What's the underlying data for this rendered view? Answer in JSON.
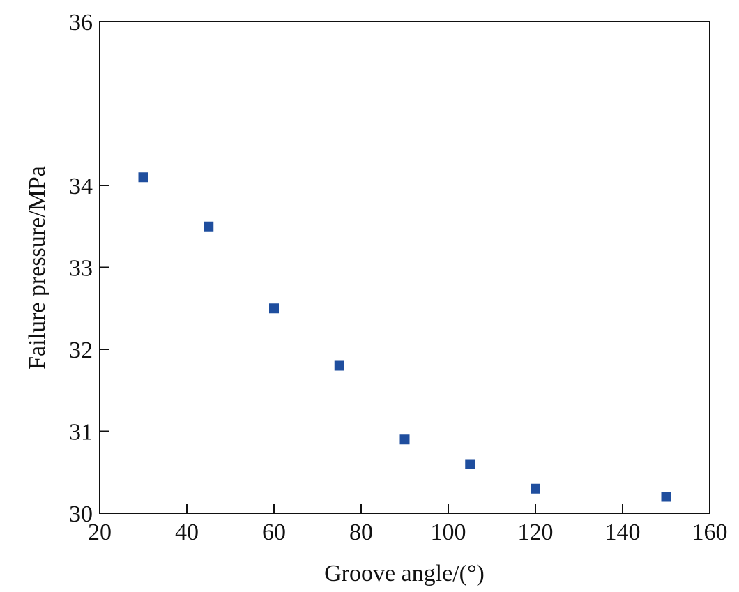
{
  "chart_data": {
    "type": "scatter",
    "xlabel": "Groove angle/(°)",
    "ylabel": "Failure pressure/MPa",
    "xlim": [
      20,
      160
    ],
    "ylim": [
      30,
      36
    ],
    "xticks": [
      "20",
      "40",
      "60",
      "80",
      "100",
      "120",
      "140",
      "160"
    ],
    "yticks": [
      "30",
      "31",
      "32",
      "33",
      "34",
      "36"
    ],
    "grid": false,
    "marker": "square",
    "marker_color": "#1f4e9e",
    "series": [
      {
        "x": [
          30,
          45,
          60,
          75,
          90,
          105,
          120,
          150
        ],
        "y": [
          34.1,
          33.5,
          32.5,
          31.8,
          30.9,
          30.6,
          30.3,
          30.2
        ]
      }
    ]
  }
}
